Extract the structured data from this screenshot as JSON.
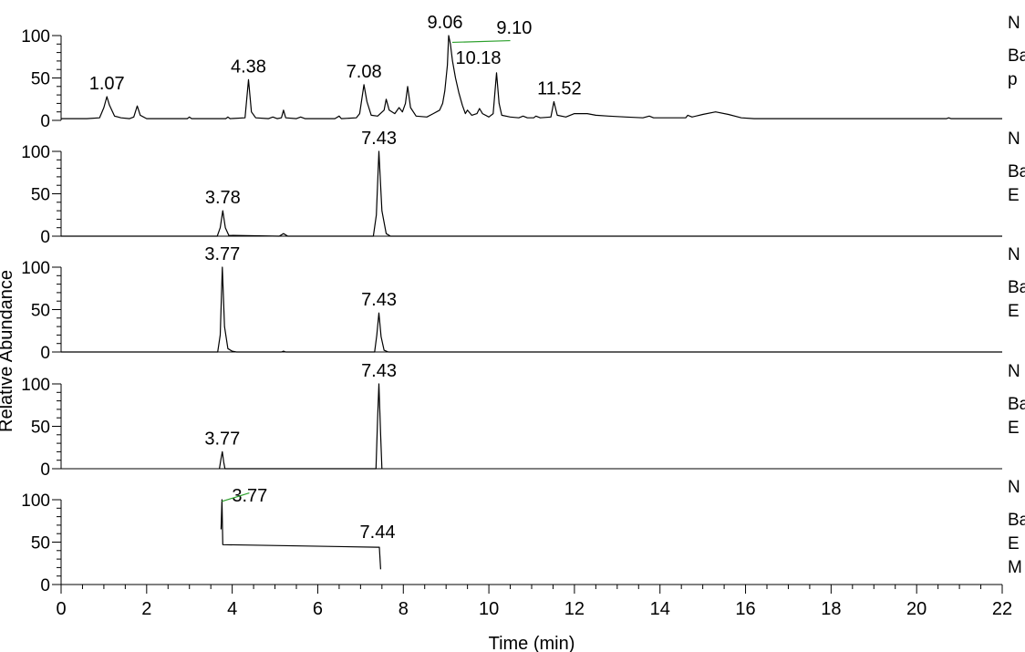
{
  "chart_data": {
    "type": "line",
    "xlabel": "Time (min)",
    "ylabel": "Relative Abundance",
    "xlim": [
      0,
      22
    ],
    "x_ticks": [
      "0",
      "2",
      "4",
      "6",
      "8",
      "10",
      "12",
      "14",
      "16",
      "18",
      "20",
      "22"
    ],
    "y_ticks": [
      "0",
      "50",
      "100"
    ],
    "ylim": [
      0,
      100
    ],
    "grid": false,
    "colors": {
      "trace": "#000000",
      "marker": "#2ca02c"
    },
    "panels": [
      {
        "side_text": [
          "N",
          "Ba",
          "p"
        ],
        "peak_labels": [
          {
            "x": 1.07,
            "text": "1.07"
          },
          {
            "x": 4.38,
            "text": "4.38"
          },
          {
            "x": 7.08,
            "text": "7.08"
          },
          {
            "x": 9.06,
            "text": "9.06"
          },
          {
            "x": 9.1,
            "text": "9.10"
          },
          {
            "x": 10.18,
            "text": "10.18"
          },
          {
            "x": 11.52,
            "text": "11.52"
          }
        ],
        "points": [
          [
            0,
            2
          ],
          [
            0.6,
            2
          ],
          [
            0.9,
            3
          ],
          [
            1.0,
            15
          ],
          [
            1.07,
            28
          ],
          [
            1.13,
            18
          ],
          [
            1.25,
            5
          ],
          [
            1.4,
            3
          ],
          [
            1.6,
            2
          ],
          [
            1.7,
            4
          ],
          [
            1.78,
            17
          ],
          [
            1.85,
            6
          ],
          [
            2.0,
            2
          ],
          [
            2.95,
            2
          ],
          [
            3.0,
            4
          ],
          [
            3.05,
            2
          ],
          [
            3.85,
            2
          ],
          [
            3.9,
            4
          ],
          [
            3.95,
            2
          ],
          [
            4.3,
            3
          ],
          [
            4.38,
            48
          ],
          [
            4.45,
            10
          ],
          [
            4.55,
            3
          ],
          [
            4.85,
            2
          ],
          [
            4.95,
            4
          ],
          [
            5.05,
            2
          ],
          [
            5.15,
            3
          ],
          [
            5.2,
            12
          ],
          [
            5.25,
            3
          ],
          [
            5.5,
            2
          ],
          [
            5.6,
            4
          ],
          [
            5.7,
            2
          ],
          [
            6.4,
            2
          ],
          [
            6.5,
            5
          ],
          [
            6.55,
            2
          ],
          [
            6.9,
            3
          ],
          [
            6.98,
            8
          ],
          [
            7.08,
            42
          ],
          [
            7.15,
            22
          ],
          [
            7.25,
            6
          ],
          [
            7.4,
            5
          ],
          [
            7.55,
            12
          ],
          [
            7.6,
            25
          ],
          [
            7.67,
            12
          ],
          [
            7.8,
            8
          ],
          [
            7.9,
            15
          ],
          [
            7.98,
            10
          ],
          [
            8.05,
            20
          ],
          [
            8.1,
            40
          ],
          [
            8.17,
            15
          ],
          [
            8.3,
            5
          ],
          [
            8.55,
            4
          ],
          [
            8.7,
            8
          ],
          [
            8.85,
            12
          ],
          [
            8.92,
            20
          ],
          [
            8.97,
            35
          ],
          [
            9.03,
            65
          ],
          [
            9.06,
            100
          ],
          [
            9.1,
            90
          ],
          [
            9.15,
            70
          ],
          [
            9.22,
            50
          ],
          [
            9.3,
            32
          ],
          [
            9.38,
            18
          ],
          [
            9.45,
            8
          ],
          [
            9.5,
            12
          ],
          [
            9.6,
            6
          ],
          [
            9.72,
            8
          ],
          [
            9.78,
            14
          ],
          [
            9.85,
            8
          ],
          [
            10.0,
            4
          ],
          [
            10.1,
            8
          ],
          [
            10.18,
            56
          ],
          [
            10.24,
            20
          ],
          [
            10.3,
            6
          ],
          [
            10.5,
            4
          ],
          [
            10.7,
            3
          ],
          [
            10.8,
            5
          ],
          [
            10.9,
            3
          ],
          [
            11.05,
            3
          ],
          [
            11.1,
            5
          ],
          [
            11.2,
            3
          ],
          [
            11.45,
            4
          ],
          [
            11.52,
            22
          ],
          [
            11.6,
            6
          ],
          [
            11.8,
            4
          ],
          [
            12.0,
            8
          ],
          [
            12.3,
            8
          ],
          [
            12.5,
            6
          ],
          [
            12.8,
            5
          ],
          [
            13.2,
            4
          ],
          [
            13.6,
            3
          ],
          [
            13.75,
            5
          ],
          [
            13.85,
            3
          ],
          [
            14.2,
            3
          ],
          [
            14.6,
            3
          ],
          [
            14.65,
            6
          ],
          [
            14.75,
            4
          ],
          [
            15.0,
            7
          ],
          [
            15.3,
            10
          ],
          [
            15.6,
            7
          ],
          [
            15.9,
            3
          ],
          [
            16.2,
            2
          ],
          [
            20.7,
            2
          ],
          [
            20.75,
            3
          ],
          [
            20.8,
            2
          ],
          [
            22,
            2
          ]
        ]
      },
      {
        "side_text": [
          "N",
          "Ba",
          "E"
        ],
        "peak_labels": [
          {
            "x": 3.78,
            "text": "3.78"
          },
          {
            "x": 7.43,
            "text": "7.43"
          }
        ],
        "points": [
          [
            0,
            0
          ],
          [
            3.65,
            0
          ],
          [
            3.72,
            10
          ],
          [
            3.78,
            30
          ],
          [
            3.84,
            10
          ],
          [
            3.92,
            1
          ],
          [
            5.1,
            0
          ],
          [
            5.2,
            3
          ],
          [
            5.3,
            0
          ],
          [
            7.3,
            0
          ],
          [
            7.37,
            25
          ],
          [
            7.43,
            100
          ],
          [
            7.5,
            30
          ],
          [
            7.6,
            3
          ],
          [
            7.7,
            0
          ],
          [
            22,
            0
          ]
        ]
      },
      {
        "side_text": [
          "N",
          "Ba",
          "E"
        ],
        "peak_labels": [
          {
            "x": 3.77,
            "text": "3.77"
          },
          {
            "x": 7.43,
            "text": "7.43"
          }
        ],
        "points": [
          [
            0,
            0
          ],
          [
            3.66,
            0
          ],
          [
            3.72,
            20
          ],
          [
            3.77,
            100
          ],
          [
            3.82,
            30
          ],
          [
            3.9,
            4
          ],
          [
            4.0,
            1
          ],
          [
            4.1,
            0
          ],
          [
            5.15,
            0
          ],
          [
            5.2,
            1
          ],
          [
            5.25,
            0
          ],
          [
            7.33,
            0
          ],
          [
            7.38,
            20
          ],
          [
            7.43,
            46
          ],
          [
            7.48,
            18
          ],
          [
            7.55,
            2
          ],
          [
            7.65,
            0
          ],
          [
            22,
            0
          ]
        ]
      },
      {
        "side_text": [
          "N",
          "Ba",
          "E"
        ],
        "peak_labels": [
          {
            "x": 3.77,
            "text": "3.77"
          },
          {
            "x": 7.43,
            "text": "7.43"
          }
        ],
        "points": [
          [
            3.7,
            0
          ],
          [
            3.74,
            12
          ],
          [
            3.77,
            20
          ],
          [
            3.8,
            8
          ],
          [
            3.83,
            0
          ],
          [
            7.36,
            0
          ],
          [
            7.4,
            60
          ],
          [
            7.43,
            100
          ],
          [
            7.47,
            40
          ],
          [
            7.5,
            0
          ]
        ]
      },
      {
        "side_text": [
          "N",
          "Ba",
          "E",
          "M"
        ],
        "peak_labels": [
          {
            "x": 3.77,
            "text": "3.77"
          },
          {
            "x": 7.44,
            "text": "7.44"
          }
        ],
        "points": [
          [
            3.74,
            65
          ],
          [
            3.76,
            100
          ],
          [
            3.78,
            47
          ],
          [
            7.4,
            44
          ],
          [
            7.44,
            44
          ],
          [
            7.47,
            18
          ]
        ]
      }
    ]
  }
}
